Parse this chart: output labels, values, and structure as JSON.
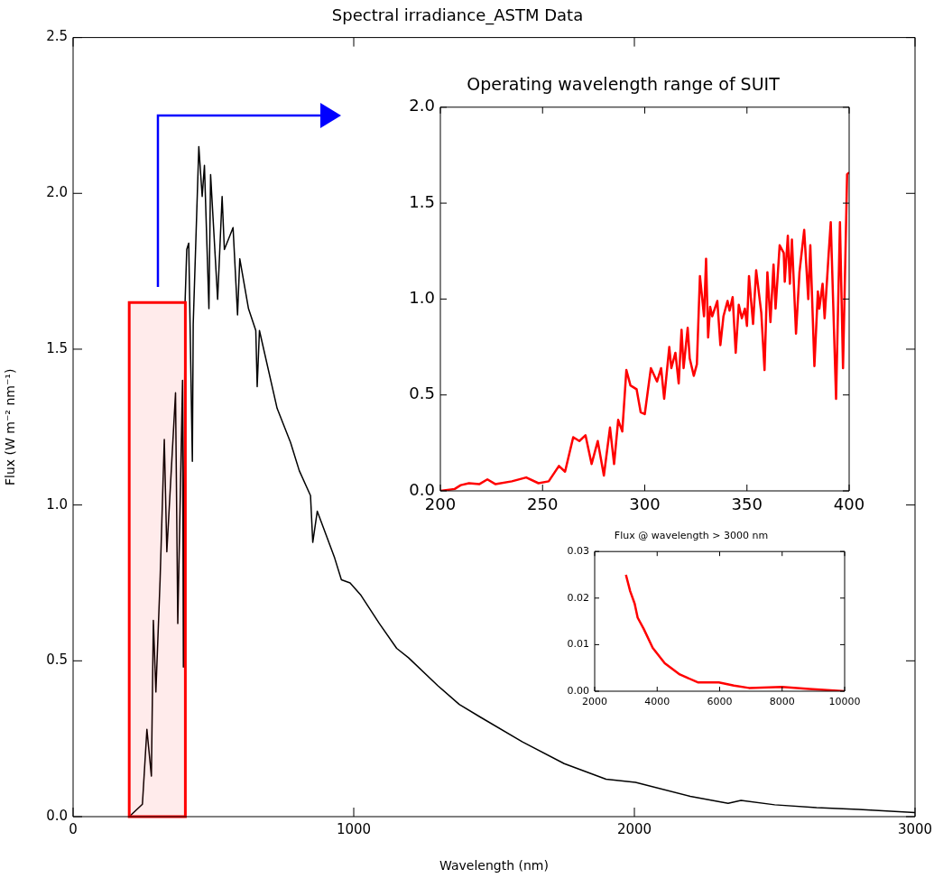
{
  "chart_data": [
    {
      "type": "line",
      "title": "Spectral irradiance_ASTM Data",
      "xlabel": "Wavelength (nm)",
      "ylabel": "Flux (W m⁻² nm⁻¹)",
      "x": [
        200,
        247,
        263,
        279,
        286,
        295,
        310,
        325,
        334,
        365,
        373,
        390,
        393,
        399,
        405,
        412,
        425,
        428,
        448,
        460,
        468,
        484,
        490,
        515,
        531,
        539,
        570,
        586,
        594,
        625,
        651,
        656,
        664,
        727,
        775,
        806,
        846,
        854,
        870,
        932,
        956,
        987,
        1026,
        1091,
        1153,
        1195,
        1300,
        1376,
        1450,
        1601,
        1750,
        1899,
        2004,
        2199,
        2334,
        2380,
        2500,
        2649,
        2799,
        3000
      ],
      "values": [
        0.0,
        0.04,
        0.28,
        0.13,
        0.63,
        0.4,
        0.76,
        1.21,
        0.85,
        1.36,
        0.62,
        1.4,
        0.48,
        1.65,
        1.82,
        1.84,
        1.14,
        1.58,
        2.15,
        1.99,
        2.09,
        1.63,
        2.06,
        1.66,
        1.99,
        1.82,
        1.89,
        1.61,
        1.79,
        1.63,
        1.56,
        1.38,
        1.56,
        1.31,
        1.2,
        1.11,
        1.03,
        0.88,
        0.98,
        0.83,
        0.76,
        0.75,
        0.71,
        0.62,
        0.54,
        0.51,
        0.42,
        0.36,
        0.32,
        0.24,
        0.17,
        0.12,
        0.11,
        0.065,
        0.043,
        0.052,
        0.038,
        0.029,
        0.023,
        0.013
      ],
      "color": "#000000",
      "xlim": [
        0,
        3000
      ],
      "xticks": [
        0,
        1000,
        2000,
        3000
      ],
      "ylim": [
        0,
        2.5
      ],
      "yticks": [
        {
          "value": 0,
          "label": "0.0"
        },
        {
          "value": 0.5,
          "label": "0.5"
        },
        {
          "value": 1,
          "label": "1.0"
        },
        {
          "value": 1.5,
          "label": "1.5"
        },
        {
          "value": 2,
          "label": "2.0"
        },
        {
          "value": 2.5,
          "label": "2.5"
        }
      ],
      "bands": [
        {
          "axis": "x",
          "from": 200,
          "to": 400,
          "color": "#ff0000"
        }
      ]
    },
    {
      "type": "line",
      "title": "Operating wavelength range of SUIT",
      "x": [
        200,
        207,
        210,
        214,
        219,
        223,
        227,
        235,
        242,
        248,
        253,
        258,
        261,
        265,
        268,
        271,
        274,
        277,
        280,
        283,
        285,
        287,
        289,
        291,
        293,
        296,
        298,
        300,
        303,
        306,
        308,
        309.5,
        312,
        313,
        315,
        316.6,
        318,
        319,
        321,
        322,
        324,
        325.5,
        327,
        329,
        330,
        331,
        332,
        333,
        335.5,
        337,
        338.5,
        340.5,
        341.5,
        343,
        344.5,
        346,
        347.5,
        349,
        350,
        351,
        353,
        354.5,
        357,
        358.6,
        360,
        361.5,
        363,
        364,
        366,
        368,
        368.5,
        370,
        371,
        372,
        374,
        375.7,
        378,
        380,
        381,
        383,
        384.7,
        385.4,
        387,
        388,
        390,
        391,
        393.6,
        395.5,
        397,
        399,
        400
      ],
      "values": [
        0.0,
        0.01,
        0.03,
        0.04,
        0.035,
        0.06,
        0.035,
        0.05,
        0.07,
        0.04,
        0.05,
        0.13,
        0.1,
        0.28,
        0.26,
        0.29,
        0.14,
        0.26,
        0.08,
        0.33,
        0.14,
        0.37,
        0.31,
        0.63,
        0.55,
        0.53,
        0.41,
        0.4,
        0.64,
        0.57,
        0.64,
        0.48,
        0.75,
        0.64,
        0.72,
        0.56,
        0.84,
        0.64,
        0.85,
        0.69,
        0.6,
        0.66,
        1.12,
        0.91,
        1.21,
        0.8,
        0.96,
        0.91,
        0.99,
        0.76,
        0.91,
        0.99,
        0.94,
        1.01,
        0.72,
        0.97,
        0.9,
        0.95,
        0.86,
        1.12,
        0.87,
        1.15,
        0.93,
        0.63,
        1.14,
        0.88,
        1.18,
        0.95,
        1.28,
        1.24,
        1.09,
        1.33,
        1.08,
        1.31,
        0.82,
        1.14,
        1.36,
        1.0,
        1.28,
        0.65,
        1.04,
        0.95,
        1.08,
        0.9,
        1.24,
        1.4,
        0.48,
        1.4,
        0.64,
        1.65,
        1.66
      ],
      "color": "#ff0000",
      "xlim": [
        200,
        400
      ],
      "xticks": [
        200,
        250,
        300,
        350,
        400
      ],
      "ylim": [
        0,
        2
      ],
      "yticks": [
        {
          "value": 0,
          "label": "0.0"
        },
        {
          "value": 0.5,
          "label": "0.5"
        },
        {
          "value": 1,
          "label": "1.0"
        },
        {
          "value": 1.5,
          "label": "1.5"
        },
        {
          "value": 2,
          "label": "2.0"
        }
      ]
    },
    {
      "type": "line",
      "title": "Flux @ wavelength > 3000 nm",
      "x": [
        3000,
        3136,
        3280,
        3376,
        3569,
        3858,
        4243,
        4724,
        5300,
        5975,
        6456,
        6938,
        7996,
        8863,
        10000
      ],
      "values": [
        0.025,
        0.0215,
        0.0188,
        0.0158,
        0.0134,
        0.0093,
        0.006,
        0.0036,
        0.0019,
        0.0019,
        0.0012,
        0.0007,
        0.0009,
        0.0005,
        0.0
      ],
      "color": "#ff0000",
      "xlim": [
        2000,
        10000
      ],
      "xticks": [
        2000,
        4000,
        6000,
        8000,
        10000
      ],
      "ylim": [
        0,
        0.03
      ],
      "yticks": [
        {
          "value": 0,
          "label": "0.00"
        },
        {
          "value": 0.01,
          "label": "0.01"
        },
        {
          "value": 0.02,
          "label": "0.02"
        },
        {
          "value": 0.03,
          "label": "0.03"
        }
      ]
    }
  ]
}
